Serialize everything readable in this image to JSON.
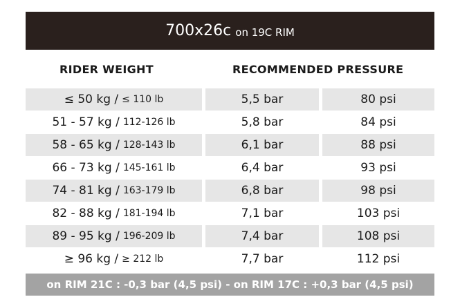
{
  "header": {
    "title": "700x26c",
    "subtitle": "on 19C RIM"
  },
  "table": {
    "columns": [
      "RIDER WEIGHT",
      "RECOMMENDED PRESSURE"
    ],
    "rows": [
      [
        "≤ 50  kg /",
        "≤ 110 lb",
        "5,5 bar",
        "80 psi"
      ],
      [
        "51 - 57 kg /",
        "112-126 lb",
        "5,8 bar",
        "84 psi"
      ],
      [
        "58 - 65 kg /",
        "128-143 lb",
        "6,1 bar",
        "88 psi"
      ],
      [
        "66 - 73 kg /",
        "145-161 lb",
        "6,4 bar",
        "93 psi"
      ],
      [
        "74 - 81 kg /",
        "163-179 lb",
        "6,8 bar",
        "98 psi"
      ],
      [
        "82 - 88 kg /",
        "181-194 lb",
        "7,1 bar",
        "103 psi"
      ],
      [
        "89 - 95 kg /",
        "196-209 lb",
        "7,4 bar",
        "108 psi"
      ],
      [
        "≥ 96 kg /",
        "≥ 212 lb",
        "7,7 bar",
        "112 psi"
      ]
    ]
  },
  "footer": {
    "note": "on RIM 21C : -0,3 bar (4,5 psi) - on RIM 17C : +0,3 bar (4,5 psi)"
  }
}
